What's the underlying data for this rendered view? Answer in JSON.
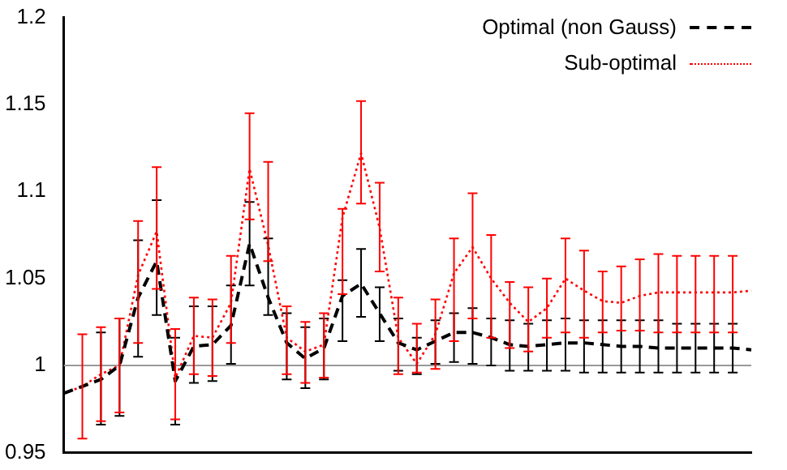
{
  "chart_data": {
    "type": "line",
    "categories": [
      null,
      null,
      null,
      null,
      null,
      null,
      null,
      null,
      null,
      null,
      null,
      null,
      null,
      null,
      null,
      null,
      null,
      null,
      null,
      null,
      null,
      null,
      null,
      null,
      null,
      null,
      null,
      null,
      null,
      null,
      null,
      null,
      null,
      null,
      null,
      null,
      null,
      null
    ],
    "series": [
      {
        "name": "Optimal (non Gauss)",
        "color": "#000000",
        "line_style": "dashed",
        "values": [
          0.984,
          0.988,
          0.992,
          1.0,
          1.039,
          1.06,
          0.991,
          1.011,
          1.012,
          1.023,
          1.07,
          1.039,
          1.013,
          1.004,
          1.01,
          1.04,
          1.047,
          1.03,
          1.013,
          1.009,
          1.014,
          1.019,
          1.019,
          1.016,
          1.012,
          1.011,
          1.012,
          1.013,
          1.013,
          1.012,
          1.011,
          1.011,
          1.01,
          1.01,
          1.01,
          1.01,
          1.01,
          1.009
        ],
        "errors": [
          null,
          null,
          [
            0.966,
            1.019
          ],
          [
            0.971,
            1.027
          ],
          [
            1.005,
            1.072
          ],
          [
            1.029,
            1.095
          ],
          [
            0.966,
            1.016
          ],
          [
            0.99,
            1.034
          ],
          [
            0.991,
            1.034
          ],
          [
            1.001,
            1.046
          ],
          [
            1.046,
            1.094
          ],
          [
            1.029,
            1.073
          ],
          [
            0.992,
            1.03
          ],
          [
            0.987,
            1.022
          ],
          [
            0.992,
            1.027
          ],
          [
            1.014,
            1.049
          ],
          [
            1.028,
            1.067
          ],
          [
            1.014,
            1.045
          ],
          [
            0.997,
            1.027
          ],
          [
            0.995,
            1.016
          ],
          [
            1.001,
            1.026
          ],
          [
            1.002,
            1.03
          ],
          [
            1.001,
            1.033
          ],
          [
            1.0,
            1.027
          ],
          [
            0.997,
            1.026
          ],
          [
            0.997,
            1.024
          ],
          [
            0.997,
            1.026
          ],
          [
            0.997,
            1.027
          ],
          [
            0.996,
            1.026
          ],
          [
            0.996,
            1.026
          ],
          [
            0.996,
            1.026
          ],
          [
            0.996,
            1.026
          ],
          [
            0.996,
            1.026
          ],
          [
            0.996,
            1.024
          ],
          [
            0.996,
            1.024
          ],
          [
            0.996,
            1.024
          ],
          [
            0.996,
            1.024
          ],
          null
        ]
      },
      {
        "name": "Sub-optimal",
        "color": "#ff0000",
        "line_style": "dotted",
        "values": [
          0.984,
          0.988,
          0.995,
          1.0,
          1.052,
          1.077,
          0.993,
          1.017,
          1.016,
          1.036,
          1.113,
          1.069,
          1.016,
          1.008,
          1.012,
          1.085,
          1.122,
          1.079,
          1.016,
          1.001,
          1.018,
          1.053,
          1.068,
          1.05,
          1.036,
          1.025,
          1.033,
          1.05,
          1.043,
          1.037,
          1.036,
          1.04,
          1.042,
          1.042,
          1.042,
          1.042,
          1.042,
          1.043
        ],
        "errors": [
          null,
          [
            0.958,
            1.018
          ],
          [
            0.968,
            1.022
          ],
          [
            0.973,
            1.027
          ],
          [
            1.013,
            1.083
          ],
          [
            1.044,
            1.114
          ],
          [
            0.969,
            1.021
          ],
          [
            0.995,
            1.039
          ],
          [
            0.994,
            1.038
          ],
          [
            1.013,
            1.063
          ],
          [
            1.084,
            1.145
          ],
          [
            1.06,
            1.117
          ],
          [
            0.995,
            1.034
          ],
          [
            0.99,
            1.025
          ],
          [
            0.993,
            1.03
          ],
          [
            1.041,
            1.09
          ],
          [
            1.093,
            1.152
          ],
          [
            1.054,
            1.105
          ],
          [
            0.995,
            1.039
          ],
          [
            0.996,
            1.024
          ],
          [
            0.998,
            1.038
          ],
          [
            1.014,
            1.073
          ],
          [
            1.027,
            1.099
          ],
          [
            1.016,
            1.075
          ],
          [
            1.01,
            1.048
          ],
          [
            1.008,
            1.045
          ],
          [
            1.016,
            1.05
          ],
          [
            1.019,
            1.073
          ],
          [
            1.016,
            1.066
          ],
          [
            1.019,
            1.054
          ],
          [
            1.02,
            1.057
          ],
          [
            1.02,
            1.061
          ],
          [
            1.019,
            1.064
          ],
          [
            1.019,
            1.063
          ],
          [
            1.019,
            1.063
          ],
          [
            1.019,
            1.063
          ],
          [
            1.019,
            1.063
          ],
          null
        ]
      }
    ],
    "ylim": [
      0.95,
      1.2
    ],
    "yticks": [
      0.95,
      1,
      1.05,
      1.1,
      1.15,
      1.2
    ],
    "tick_labels": "y",
    "legend": "top right",
    "marker": "none",
    "grid": false,
    "ref_lines": [
      {
        "axis": "y",
        "value": 1,
        "color": "#999999"
      }
    ]
  }
}
